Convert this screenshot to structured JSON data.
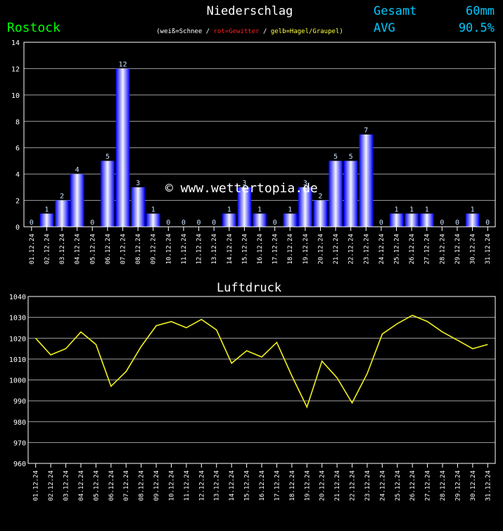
{
  "header": {
    "title": "Niederschlag",
    "location": "Rostock",
    "legend_prefix": "(weiß=Schnee /",
    "legend_red": "rot=Gewitter",
    "legend_sep": "/",
    "legend_yellow": "gelb=Hagel/Graupel)",
    "total_label": "Gesamt",
    "total_value": "60mm",
    "avg_label": "AVG",
    "avg_value": "90.5%",
    "colors": {
      "location": "#00ff00",
      "cyan": "#00c8ff",
      "red": "#ff2020",
      "yellow": "#ffff40",
      "title": "#ffffff"
    }
  },
  "watermark": "© www.wettertopia.de",
  "chart_data": [
    {
      "type": "bar",
      "ylim": [
        0,
        14
      ],
      "yticks": [
        0,
        2,
        4,
        6,
        8,
        10,
        12,
        14
      ],
      "categories": [
        "01.12.24",
        "02.12.24",
        "03.12.24",
        "04.12.24",
        "05.12.24",
        "06.12.24",
        "07.12.24",
        "08.12.24",
        "09.12.24",
        "10.12.24",
        "11.12.24",
        "12.12.24",
        "13.12.24",
        "14.12.24",
        "15.12.24",
        "16.12.24",
        "17.12.24",
        "18.12.24",
        "19.12.24",
        "20.12.24",
        "21.12.24",
        "22.12.24",
        "23.12.24",
        "24.12.24",
        "25.12.24",
        "26.12.24",
        "27.12.24",
        "28.12.24",
        "29.12.24",
        "30.12.24",
        "31.12.24"
      ],
      "values": [
        0,
        1,
        2,
        4,
        0,
        5,
        12,
        3,
        1,
        0,
        0,
        0,
        0,
        1,
        3,
        1,
        0,
        1,
        3,
        2,
        5,
        5,
        7,
        0,
        1,
        1,
        1,
        0,
        0,
        1,
        0
      ],
      "grid": true,
      "bar_color": "#1010ff",
      "label_color": "#c8e0ff"
    },
    {
      "type": "line",
      "title": "Luftdruck",
      "ylim": [
        960,
        1040
      ],
      "yticks": [
        960,
        970,
        980,
        990,
        1000,
        1010,
        1020,
        1030,
        1040
      ],
      "categories": [
        "01.12.24",
        "02.12.24",
        "03.12.24",
        "04.12.24",
        "05.12.24",
        "06.12.24",
        "07.12.24",
        "08.12.24",
        "09.12.24",
        "10.12.24",
        "11.12.24",
        "12.12.24",
        "13.12.24",
        "14.12.24",
        "15.12.24",
        "16.12.24",
        "17.12.24",
        "18.12.24",
        "19.12.24",
        "20.12.24",
        "21.12.24",
        "22.12.24",
        "23.12.24",
        "24.12.24",
        "25.12.24",
        "26.12.24",
        "27.12.24",
        "28.12.24",
        "29.12.24",
        "30.12.24",
        "31.12.24"
      ],
      "values": [
        1020,
        1012,
        1015,
        1023,
        1017,
        997,
        1004,
        1016,
        1026,
        1028,
        1025,
        1029,
        1024,
        1008,
        1014,
        1011,
        1018,
        1002,
        987,
        1009,
        1001,
        989,
        1003,
        1022,
        1027,
        1031,
        1028,
        1023,
        1019,
        1015,
        1017
      ],
      "grid": true,
      "line_color": "#f0f020"
    }
  ]
}
